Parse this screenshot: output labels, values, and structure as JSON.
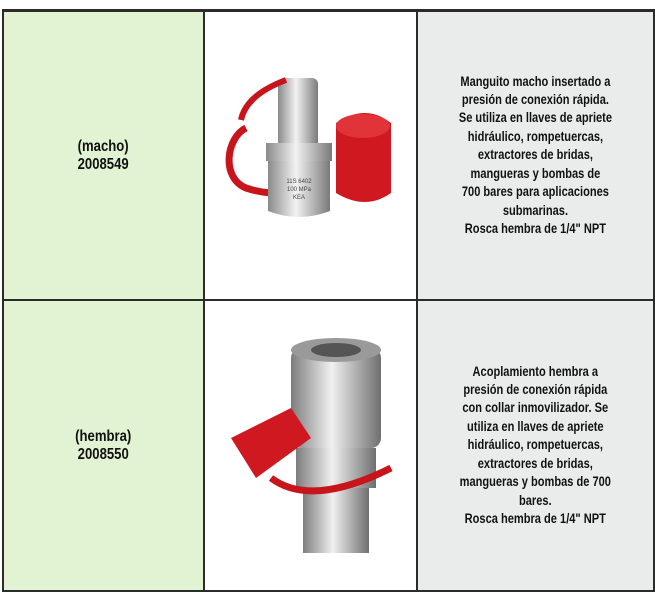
{
  "table": {
    "rows": [
      {
        "label": "(macho)",
        "code": "2008549",
        "image_text": [
          "11S 6402",
          "100 MPa",
          "KEA"
        ],
        "description": [
          "Manguito macho insertado a",
          "presión de conexión rápida.",
          "Se utiliza en llaves de apriete",
          "hidráulico, rompetuercas,",
          "extractores de bridas,",
          "mangueras y bombas de",
          "700 bares para aplicaciones",
          "submarinas.",
          "Rosca hembra de 1/4\" NPT"
        ]
      },
      {
        "label": "(hembra)",
        "code": "2008550",
        "description": [
          "Acoplamiento hembra a",
          "presión de conexión rápida",
          "con collar inmovilizador. Se",
          "utiliza en llaves de apriete",
          "hidráulico, rompetuercas,",
          "extractores de bridas,",
          "mangueras y bombas de 700",
          "bares.",
          "Rosca hembra de 1/4\" NPT"
        ]
      }
    ]
  }
}
